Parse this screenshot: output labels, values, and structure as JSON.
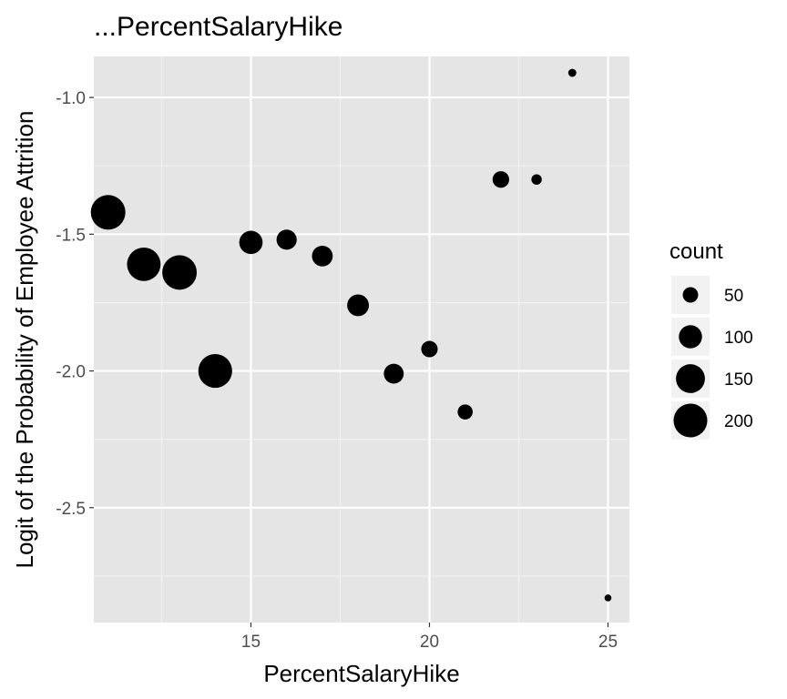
{
  "chart_data": {
    "type": "scatter",
    "title": "...PercentSalaryHike",
    "xlabel": "PercentSalaryHike",
    "ylabel": "Logit of the Probability of Employee Attrition",
    "xlim": [
      10.6,
      25.6
    ],
    "ylim": [
      -2.92,
      -0.85
    ],
    "x_ticks": [
      15,
      20,
      25
    ],
    "y_ticks": [
      -2.5,
      -2.0,
      -1.5,
      -1.0
    ],
    "y_tick_labels": [
      "-2.5",
      "-2.0",
      "-1.5",
      "-1.0"
    ],
    "x_minor_ticks": [
      12.5,
      17.5,
      22.5
    ],
    "y_minor_ticks": [
      -2.75,
      -2.25,
      -1.75,
      -1.25
    ],
    "grid": true,
    "legend_position": "right",
    "points": [
      {
        "x": 11,
        "y": -1.42,
        "count": 210
      },
      {
        "x": 12,
        "y": -1.61,
        "count": 198
      },
      {
        "x": 13,
        "y": -1.64,
        "count": 209
      },
      {
        "x": 14,
        "y": -2.0,
        "count": 201
      },
      {
        "x": 15,
        "y": -1.53,
        "count": 101
      },
      {
        "x": 16,
        "y": -1.52,
        "count": 78
      },
      {
        "x": 17,
        "y": -1.58,
        "count": 82
      },
      {
        "x": 18,
        "y": -1.76,
        "count": 89
      },
      {
        "x": 19,
        "y": -2.01,
        "count": 76
      },
      {
        "x": 20,
        "y": -1.92,
        "count": 55
      },
      {
        "x": 21,
        "y": -2.15,
        "count": 48
      },
      {
        "x": 22,
        "y": -1.3,
        "count": 56
      },
      {
        "x": 23,
        "y": -1.3,
        "count": 28
      },
      {
        "x": 24,
        "y": -0.91,
        "count": 21
      },
      {
        "x": 25,
        "y": -2.83,
        "count": 18
      }
    ],
    "size": {
      "legend_title": "count",
      "legend_values": [
        50,
        100,
        150,
        200
      ]
    },
    "colors": {
      "panel_background": "#e5e5e5",
      "grid_major": "#ffffff",
      "grid_minor": "#f2f2f2",
      "point": "#000000",
      "tick_label": "#4d4d4d",
      "legend_key_background": "#f2f2f2"
    }
  }
}
